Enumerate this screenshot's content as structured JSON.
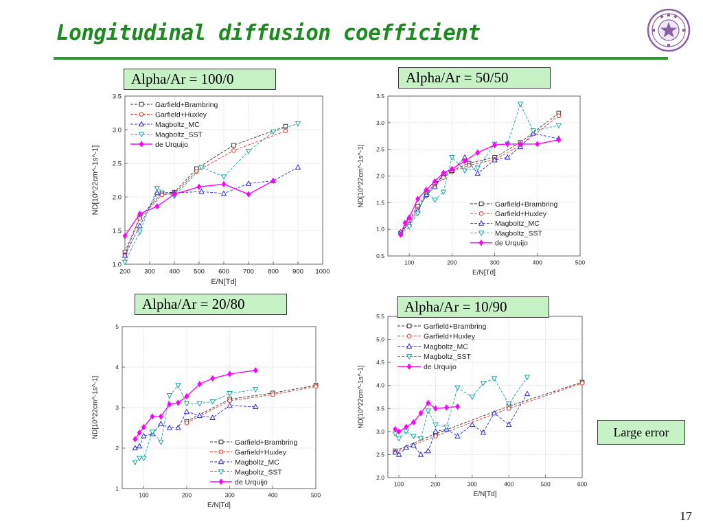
{
  "slide": {
    "title": "Longitudinal diffusion coefficient",
    "note": "Large error",
    "page_number": "17"
  },
  "logo": {
    "icon": "university-seal-icon",
    "color": "#8a5fa6"
  },
  "colors": {
    "title": "#1c8a1c",
    "label_fill": "#c6f2c6",
    "series": {
      "Garfield+Brambring": "#333333",
      "Garfield+Huxley": "#e8322a",
      "Magboltz_MC": "#2a2ad6",
      "Magboltz_SST": "#13a8a0",
      "de Urquijo": "#ff00ff"
    }
  },
  "chart_data": [
    {
      "type": "line",
      "panel_label": "Alpha/Ar = 100/0",
      "xlabel": "E/N[Td]",
      "ylabel": "ND[10^22cm^-1s^-1]",
      "xlim": [
        200,
        1000
      ],
      "ylim": [
        1.0,
        3.5
      ],
      "xticks": [
        200,
        300,
        400,
        500,
        600,
        700,
        800,
        900,
        1000
      ],
      "yticks": [
        1.0,
        1.5,
        2.0,
        2.5,
        3.0,
        3.5
      ],
      "legend_position": "top-left",
      "series": [
        {
          "name": "Garfield+Brambring",
          "marker": "square",
          "x": [
            200,
            260,
            350,
            400,
            490,
            640,
            850
          ],
          "y": [
            1.18,
            1.7,
            2.06,
            2.07,
            2.42,
            2.77,
            3.05
          ]
        },
        {
          "name": "Garfield+Huxley",
          "marker": "circle",
          "x": [
            200,
            260,
            350,
            400,
            490,
            640,
            850
          ],
          "y": [
            1.14,
            1.68,
            2.03,
            2.05,
            2.38,
            2.69,
            2.98
          ]
        },
        {
          "name": "Magboltz_MC",
          "marker": "triangle-up",
          "x": [
            200,
            260,
            330,
            400,
            510,
            600,
            700,
            800,
            900
          ],
          "y": [
            1.13,
            1.57,
            2.06,
            2.06,
            2.08,
            2.05,
            2.2,
            2.24,
            2.44
          ]
        },
        {
          "name": "Magboltz_SST",
          "marker": "triangle-down",
          "x": [
            200,
            260,
            330,
            400,
            510,
            600,
            700,
            800,
            900
          ],
          "y": [
            1.03,
            1.48,
            2.13,
            2.01,
            2.44,
            2.3,
            2.68,
            2.97,
            3.09
          ]
        },
        {
          "name": "de Urquijo",
          "marker": "diamond",
          "x": [
            200,
            260,
            330,
            400,
            500,
            600,
            700,
            800
          ],
          "y": [
            1.42,
            1.75,
            1.86,
            2.04,
            2.15,
            2.19,
            2.04,
            2.24
          ]
        }
      ]
    },
    {
      "type": "line",
      "panel_label": "Alpha/Ar = 50/50",
      "xlabel": "E/N[Td]",
      "ylabel": "ND[10^22cm^-1s^-1]",
      "xlim": [
        50,
        500
      ],
      "ylim": [
        0.5,
        3.5
      ],
      "xticks": [
        100,
        200,
        300,
        400,
        500
      ],
      "yticks": [
        0.5,
        1.0,
        1.5,
        2.0,
        2.5,
        3.0,
        3.5
      ],
      "legend_position": "bottom-right",
      "series": [
        {
          "name": "Garfield+Brambring",
          "marker": "square",
          "x": [
            80,
            100,
            120,
            140,
            160,
            180,
            200,
            240,
            300,
            360,
            450
          ],
          "y": [
            0.93,
            1.18,
            1.43,
            1.67,
            1.85,
            2.0,
            2.1,
            2.24,
            2.35,
            2.63,
            3.18
          ]
        },
        {
          "name": "Garfield+Huxley",
          "marker": "circle",
          "x": [
            80,
            100,
            120,
            140,
            160,
            180,
            200,
            240,
            300,
            360,
            450
          ],
          "y": [
            0.9,
            1.15,
            1.38,
            1.63,
            1.81,
            1.97,
            2.08,
            2.2,
            2.31,
            2.57,
            3.13
          ]
        },
        {
          "name": "Magboltz_MC",
          "marker": "triangle-up",
          "x": [
            80,
            100,
            120,
            140,
            160,
            180,
            200,
            230,
            260,
            300,
            330,
            360,
            390,
            450
          ],
          "y": [
            0.95,
            1.1,
            1.35,
            1.65,
            1.8,
            2.05,
            2.1,
            2.35,
            2.05,
            2.3,
            2.35,
            2.55,
            2.8,
            2.7
          ]
        },
        {
          "name": "Magboltz_SST",
          "marker": "triangle-down",
          "x": [
            80,
            100,
            120,
            140,
            160,
            180,
            200,
            230,
            260,
            300,
            330,
            360,
            390,
            450
          ],
          "y": [
            0.9,
            1.05,
            1.3,
            1.7,
            1.55,
            1.7,
            2.35,
            2.1,
            2.15,
            2.6,
            2.6,
            3.35,
            2.85,
            2.95
          ]
        },
        {
          "name": "de Urquijo",
          "marker": "diamond",
          "x": [
            80,
            90,
            100,
            120,
            140,
            160,
            180,
            200,
            230,
            260,
            300,
            330,
            360,
            400,
            450
          ],
          "y": [
            0.9,
            1.12,
            1.22,
            1.57,
            1.74,
            1.9,
            2.06,
            2.13,
            2.28,
            2.44,
            2.58,
            2.6,
            2.6,
            2.6,
            2.68
          ]
        }
      ]
    },
    {
      "type": "line",
      "panel_label": "Alpha/Ar = 20/80",
      "xlabel": "E/N[Td]",
      "ylabel": "ND[10^22cm^-1s^-1]",
      "xlim": [
        50,
        500
      ],
      "ylim": [
        1,
        5
      ],
      "xticks": [
        100,
        200,
        300,
        400,
        500
      ],
      "yticks": [
        1,
        2,
        3,
        4,
        5
      ],
      "legend_position": "bottom-right",
      "series": [
        {
          "name": "Garfield+Brambring",
          "marker": "square",
          "x": [
            200,
            300,
            400,
            500
          ],
          "y": [
            2.66,
            3.21,
            3.36,
            3.55
          ]
        },
        {
          "name": "Garfield+Huxley",
          "marker": "circle",
          "x": [
            200,
            300,
            400,
            500
          ],
          "y": [
            2.62,
            3.17,
            3.32,
            3.52
          ]
        },
        {
          "name": "Magboltz_MC",
          "marker": "triangle-up",
          "x": [
            80,
            90,
            100,
            120,
            140,
            160,
            180,
            200,
            230,
            260,
            300,
            360
          ],
          "y": [
            2.0,
            2.05,
            2.3,
            2.35,
            2.6,
            2.5,
            2.5,
            2.9,
            2.8,
            2.75,
            3.05,
            3.02
          ]
        },
        {
          "name": "Magboltz_SST",
          "marker": "triangle-down",
          "x": [
            80,
            90,
            100,
            120,
            140,
            160,
            180,
            200,
            230,
            260,
            300,
            360
          ],
          "y": [
            1.65,
            1.75,
            1.75,
            2.4,
            2.15,
            3.3,
            3.55,
            3.1,
            3.1,
            3.15,
            3.35,
            3.45
          ]
        },
        {
          "name": "de Urquijo",
          "marker": "diamond",
          "x": [
            80,
            90,
            100,
            120,
            140,
            160,
            180,
            200,
            230,
            260,
            300,
            360
          ],
          "y": [
            2.22,
            2.38,
            2.52,
            2.78,
            2.78,
            3.08,
            3.12,
            3.28,
            3.58,
            3.72,
            3.83,
            3.92
          ]
        }
      ]
    },
    {
      "type": "line",
      "panel_label": "Alpha/Ar = 10/90",
      "xlabel": "E/N[Td]",
      "ylabel": "ND[10^22cm^-1s^-1]",
      "xlim": [
        70,
        600
      ],
      "ylim": [
        2.0,
        5.5
      ],
      "xticks": [
        100,
        200,
        300,
        400,
        500,
        600
      ],
      "yticks": [
        2.0,
        2.5,
        3.0,
        3.5,
        4.0,
        4.5,
        5.0,
        5.5
      ],
      "legend_position": "top-left",
      "series": [
        {
          "name": "Garfield+Brambring",
          "marker": "square",
          "x": [
            90,
            200,
            400,
            600
          ],
          "y": [
            2.58,
            2.95,
            3.55,
            4.07
          ]
        },
        {
          "name": "Garfield+Huxley",
          "marker": "circle",
          "x": [
            90,
            200,
            400,
            600
          ],
          "y": [
            2.55,
            2.9,
            3.5,
            4.05
          ]
        },
        {
          "name": "Magboltz_MC",
          "marker": "triangle-up",
          "x": [
            90,
            100,
            120,
            140,
            160,
            180,
            200,
            230,
            260,
            300,
            330,
            360,
            400,
            450
          ],
          "y": [
            2.55,
            2.5,
            2.65,
            2.7,
            2.5,
            2.58,
            3.0,
            3.05,
            2.9,
            3.15,
            2.98,
            3.4,
            3.15,
            3.82
          ]
        },
        {
          "name": "Magboltz_SST",
          "marker": "triangle-down",
          "x": [
            90,
            100,
            120,
            140,
            160,
            180,
            200,
            230,
            260,
            300,
            330,
            360,
            400,
            450
          ],
          "y": [
            2.95,
            2.85,
            3.0,
            2.9,
            2.85,
            3.45,
            3.15,
            3.1,
            3.95,
            3.75,
            4.05,
            4.15,
            3.6,
            4.18
          ]
        },
        {
          "name": "de Urquijo",
          "marker": "diamond",
          "x": [
            90,
            100,
            120,
            140,
            160,
            180,
            200,
            230,
            260
          ],
          "y": [
            3.05,
            3.0,
            3.1,
            3.2,
            3.4,
            3.62,
            3.5,
            3.52,
            3.54
          ]
        }
      ]
    }
  ]
}
